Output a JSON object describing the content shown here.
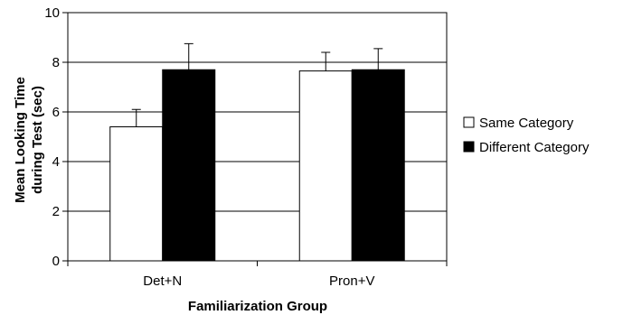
{
  "chart_data": {
    "type": "bar",
    "categories": [
      "Det+N",
      "Pron+V"
    ],
    "series": [
      {
        "name": "Same Category",
        "values": [
          5.4,
          7.65
        ],
        "errors": [
          0.7,
          0.75
        ],
        "color": "#ffffff"
      },
      {
        "name": "Different Category",
        "values": [
          7.7,
          7.7
        ],
        "errors": [
          1.05,
          0.85
        ],
        "color": "#000000"
      }
    ],
    "xlabel": "Familiarization Group",
    "ylabel_lines": [
      "Mean Looking Time",
      "during Test (sec)"
    ],
    "ylim": [
      0,
      10
    ],
    "yticks": [
      "0",
      "2",
      "4",
      "6",
      "8",
      "10"
    ],
    "grid": true,
    "legend_position": "right"
  }
}
